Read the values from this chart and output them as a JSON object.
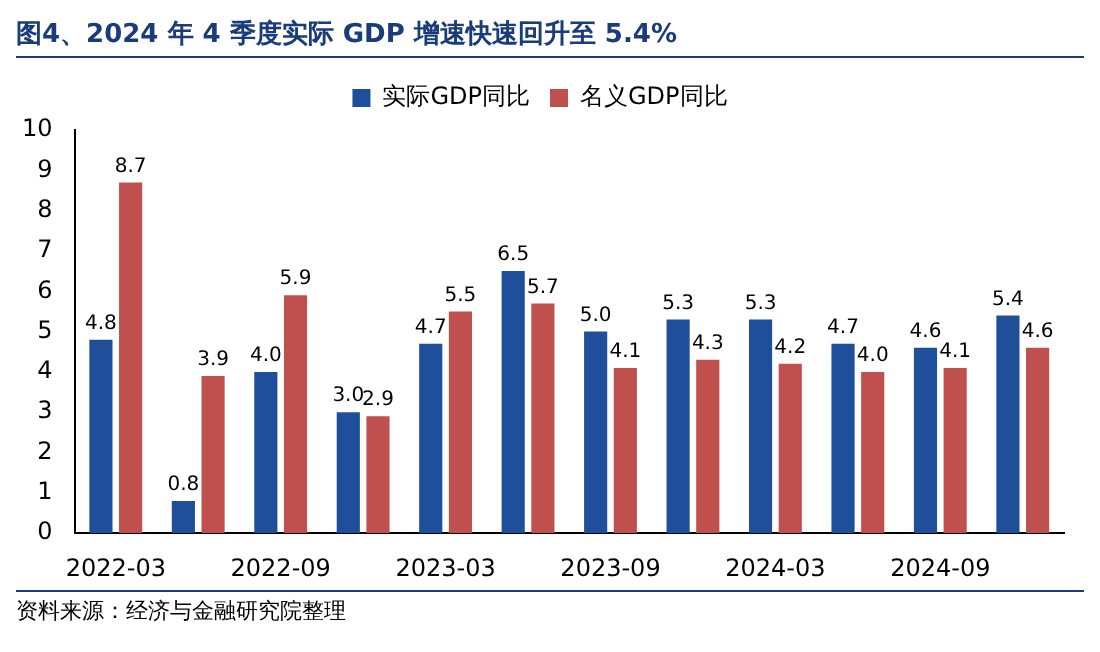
{
  "chart_data": {
    "type": "bar",
    "title": "图4、2024 年 4 季度实际 GDP 增速快速回升至 5.4%",
    "categories": [
      "2022-03",
      null,
      "2022-09",
      null,
      "2023-03",
      null,
      "2023-09",
      null,
      "2024-03",
      null,
      "2024-09",
      null
    ],
    "series": [
      {
        "name": "实际GDP同比",
        "color": "#1f4e9a",
        "values": [
          4.8,
          0.8,
          4.0,
          3.0,
          4.7,
          6.5,
          5.0,
          5.3,
          5.3,
          4.7,
          4.6,
          5.4
        ],
        "value_labels": [
          "4.8",
          "0.8",
          "4.0",
          "3.0",
          "4.7",
          "6.5",
          "5.0",
          "5.3",
          "5.3",
          "4.7",
          "4.6",
          "5.4"
        ]
      },
      {
        "name": "名义GDP同比",
        "color": "#c0504d",
        "values": [
          8.7,
          3.9,
          5.9,
          2.9,
          5.5,
          5.7,
          4.1,
          4.3,
          4.2,
          4.0,
          4.1,
          4.6
        ],
        "value_labels": [
          "8.7",
          "3.9",
          "5.9",
          "2.9",
          "5.5",
          "5.7",
          "4.1",
          "4.3",
          "4.2",
          "4.0",
          "4.1",
          "4.6"
        ]
      }
    ],
    "ylim": [
      0,
      10
    ],
    "yticks": [
      0,
      1,
      2,
      3,
      4,
      5,
      6,
      7,
      8,
      9,
      10
    ],
    "grid": false,
    "legend": "top",
    "annotations": [
      "资料来源：经济与金融研究院整理"
    ]
  }
}
